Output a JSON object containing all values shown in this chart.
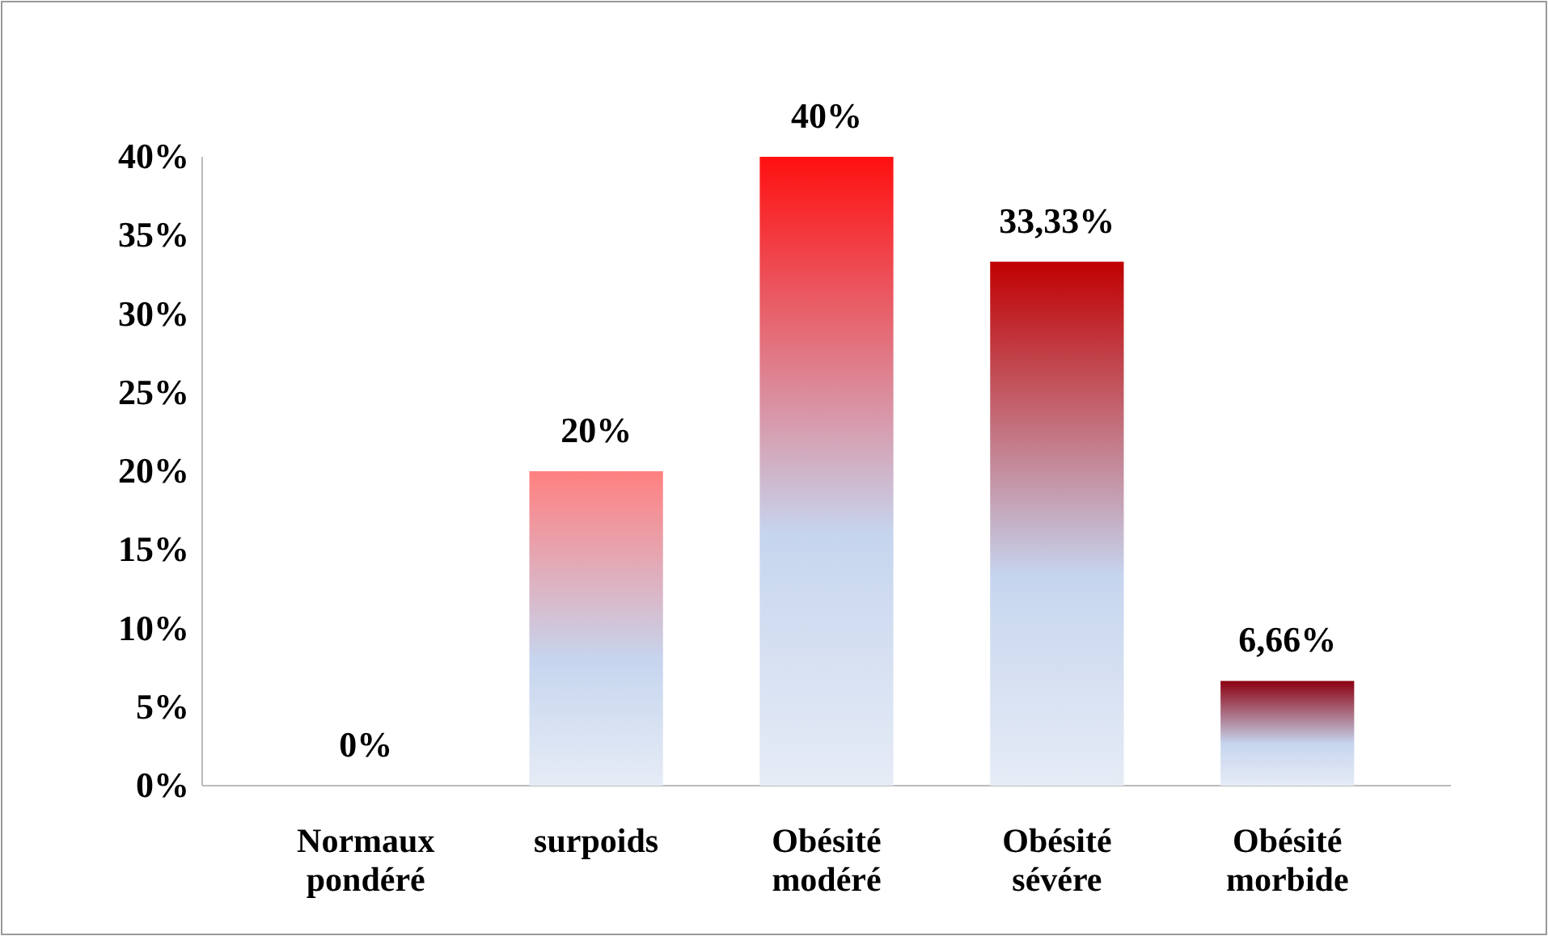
{
  "chart_data": {
    "type": "bar",
    "categories": [
      "Normaux pondéré",
      "surpoids",
      "Obésité modéré",
      "Obésité sévére",
      "Obésité morbide"
    ],
    "values": [
      0,
      20,
      40,
      33.33,
      6.66
    ],
    "value_labels": [
      "0%",
      "20%",
      "40%",
      "33,33%",
      "6,66%"
    ],
    "colors": [
      "#4a5a3c",
      "#ff8080",
      "#ff1010",
      "#c00000",
      "#8b0010"
    ],
    "ylim": [
      0,
      40
    ],
    "yticks": [
      {
        "value": 0,
        "label": "0%"
      },
      {
        "value": 5,
        "label": "5%"
      },
      {
        "value": 10,
        "label": "10%"
      },
      {
        "value": 15,
        "label": "15%"
      },
      {
        "value": 20,
        "label": "20%"
      },
      {
        "value": 25,
        "label": "25%"
      },
      {
        "value": 30,
        "label": "30%"
      },
      {
        "value": 35,
        "label": "35%"
      },
      {
        "value": 40,
        "label": "40%"
      }
    ],
    "grid": false
  }
}
